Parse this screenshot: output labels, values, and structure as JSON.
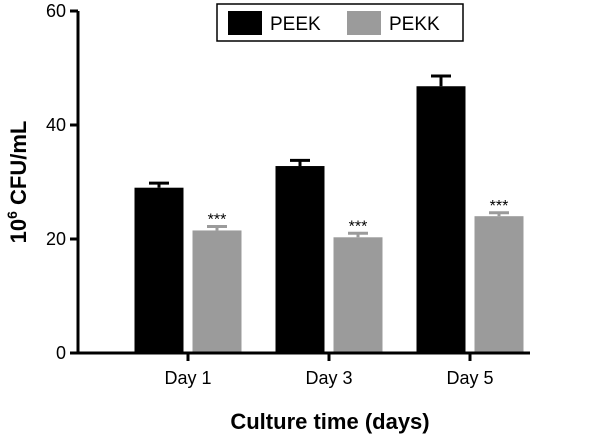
{
  "chart_data": {
    "type": "bar",
    "categories": [
      "Day 1",
      "Day 3",
      "Day 5"
    ],
    "series": [
      {
        "name": "PEEK",
        "values": [
          29,
          32.8,
          46.8
        ],
        "errors": [
          0.8,
          1.0,
          1.8
        ],
        "color": "#000000"
      },
      {
        "name": "PEKK",
        "values": [
          21.5,
          20.3,
          24
        ],
        "errors": [
          0.7,
          0.7,
          0.6
        ],
        "color": "#9b9b9b"
      }
    ],
    "significance": [
      "***",
      "***",
      "***"
    ],
    "xlabel": "Culture time (days)",
    "ylabel_base": "10",
    "ylabel_exponent": "6",
    "ylabel_unit": " CFU/mL",
    "ylim": [
      0,
      60
    ],
    "yticks": [
      0,
      20,
      40,
      60
    ],
    "legend_position": "top-right",
    "grid": false
  }
}
